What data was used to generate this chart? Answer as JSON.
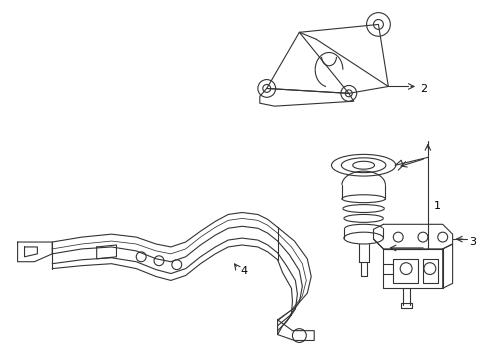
{
  "background_color": "#ffffff",
  "line_color": "#333333",
  "line_width": 0.8,
  "figsize": [
    4.89,
    3.6
  ],
  "dpi": 100,
  "parts": [
    {
      "id": 1,
      "label": "1"
    },
    {
      "id": 2,
      "label": "2"
    },
    {
      "id": 3,
      "label": "3"
    },
    {
      "id": 4,
      "label": "4"
    }
  ]
}
